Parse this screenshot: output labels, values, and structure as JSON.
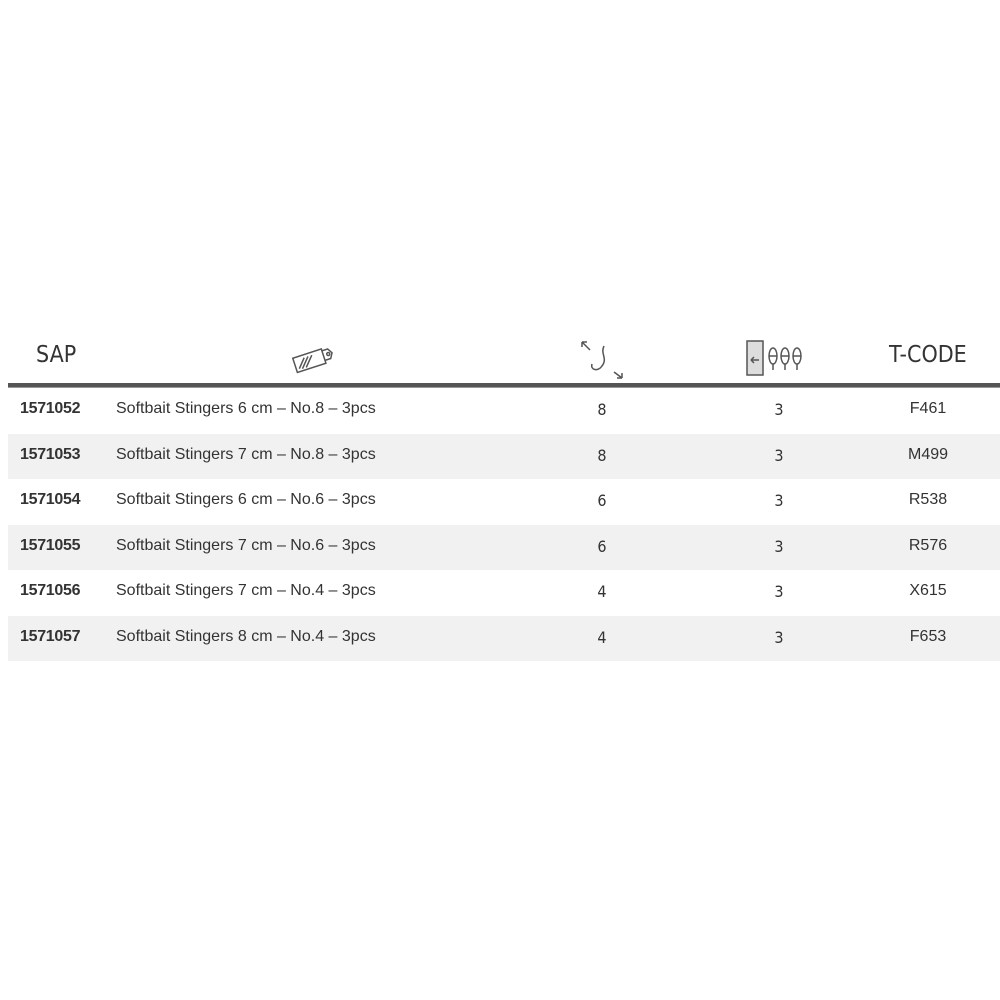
{
  "header": {
    "sap": "SAP",
    "description_icon": "price-tag-icon",
    "size_icon": "hook-size-icon",
    "quantity_icon": "pack-quantity-icon",
    "tcode": "T-CODE"
  },
  "rows": [
    {
      "sap": "1571052",
      "description": "Softbait Stingers 6 cm – No.8 – 3pcs",
      "size": "8",
      "qty": "3",
      "tcode": "F461"
    },
    {
      "sap": "1571053",
      "description": "Softbait Stingers 7 cm – No.8 – 3pcs",
      "size": "8",
      "qty": "3",
      "tcode": "M499"
    },
    {
      "sap": "1571054",
      "description": "Softbait Stingers 6 cm – No.6 – 3pcs",
      "size": "6",
      "qty": "3",
      "tcode": "R538"
    },
    {
      "sap": "1571055",
      "description": "Softbait Stingers 7 cm – No.6 – 3pcs",
      "size": "6",
      "qty": "3",
      "tcode": "R576"
    },
    {
      "sap": "1571056",
      "description": "Softbait Stingers 7 cm – No.4 – 3pcs",
      "size": "4",
      "qty": "3",
      "tcode": "X615"
    },
    {
      "sap": "1571057",
      "description": "Softbait Stingers 8 cm – No.4 – 3pcs",
      "size": "4",
      "qty": "3",
      "tcode": "F653"
    }
  ]
}
